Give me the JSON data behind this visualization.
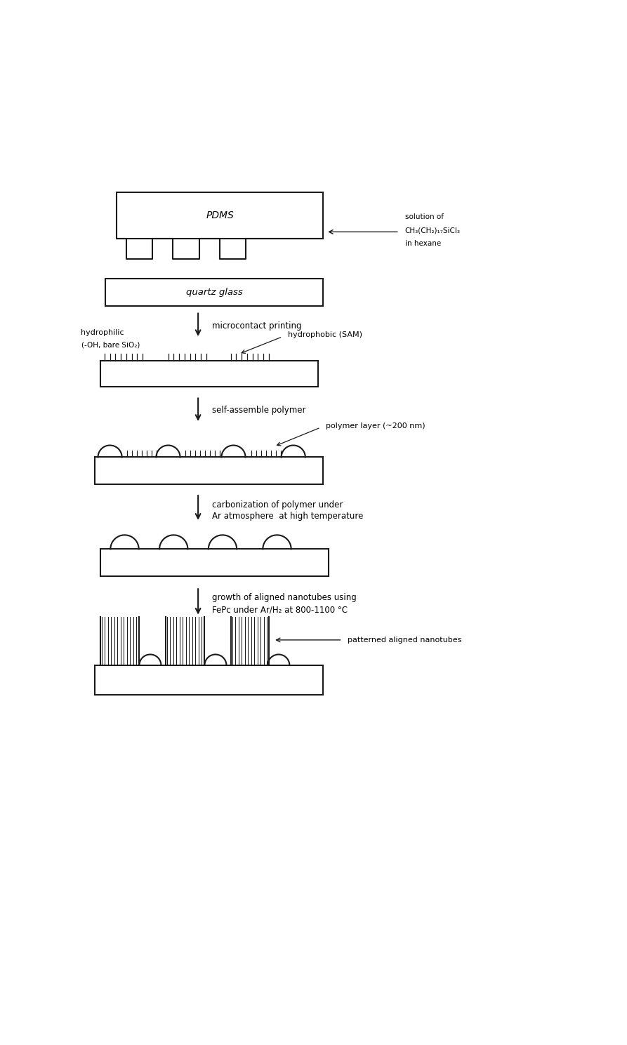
{
  "bg_color": "#ffffff",
  "line_color": "#1a1a1a",
  "fig_width": 8.93,
  "fig_height": 14.89,
  "annotation_solution": "solution of\nCH₃(CH₂)₁₇SiCl₃\nin hexane",
  "label_pdms": "PDMS",
  "label_quartz": "quartz glass",
  "step1_label": "microcontact printing",
  "label_hydrophilic": "hydrophilic\n(-OH, bare SiO₂)",
  "label_hydrophobic": "hydrophobic (SAM)",
  "step2_label": "self-assemble polymer",
  "label_polymer": "polymer layer (~200 nm)",
  "step3_label": "carbonization of polymer under\nAr atmosphere  at high temperature",
  "step4_label": "growth of aligned nanotubes using\nFePc under Ar/H₂ at 800-1100 °C",
  "label_nanotubes": "patterned aligned nanotubes"
}
